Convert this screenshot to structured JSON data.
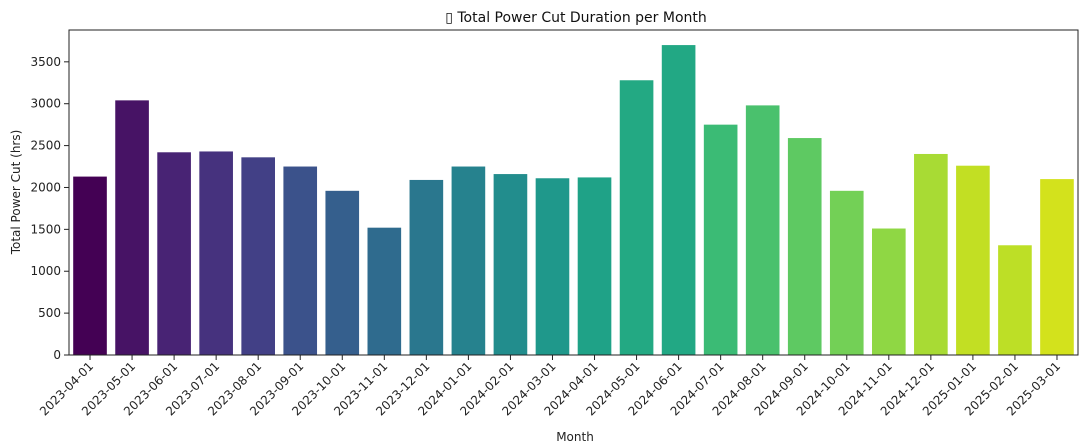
{
  "chart_data": {
    "type": "bar",
    "title": "▯ Total Power Cut Duration per Month",
    "xlabel": "Month",
    "ylabel": "Total Power Cut (hrs)",
    "ylim": [
      0,
      3880
    ],
    "yticks": [
      0,
      500,
      1000,
      1500,
      2000,
      2500,
      3000,
      3500
    ],
    "grid": false,
    "palette": "viridis",
    "categories": [
      "2023-04-01",
      "2023-05-01",
      "2023-06-01",
      "2023-07-01",
      "2023-08-01",
      "2023-09-01",
      "2023-10-01",
      "2023-11-01",
      "2023-12-01",
      "2024-01-01",
      "2024-02-01",
      "2024-03-01",
      "2024-04-01",
      "2024-05-01",
      "2024-06-01",
      "2024-07-01",
      "2024-08-01",
      "2024-09-01",
      "2024-10-01",
      "2024-11-01",
      "2024-12-01",
      "2025-01-01",
      "2025-02-01",
      "2025-03-01"
    ],
    "values": [
      2130,
      3040,
      2420,
      2430,
      2360,
      2250,
      1960,
      1520,
      2090,
      2250,
      2160,
      2110,
      2120,
      3280,
      3700,
      2750,
      2980,
      2590,
      1960,
      1510,
      2400,
      2260,
      1310,
      2100
    ],
    "colors": [
      "#440154",
      "#471365",
      "#482374",
      "#46327e",
      "#424086",
      "#3b528b",
      "#355f8d",
      "#2f6b8e",
      "#2a778e",
      "#26828e",
      "#228d8d",
      "#1f988b",
      "#1fa287",
      "#23a983",
      "#22a884",
      "#3bbb75",
      "#4ac16d",
      "#5ec962",
      "#73d056",
      "#8fd744",
      "#a8db34",
      "#c2df23",
      "#bddf26",
      "#d3e21c"
    ]
  }
}
